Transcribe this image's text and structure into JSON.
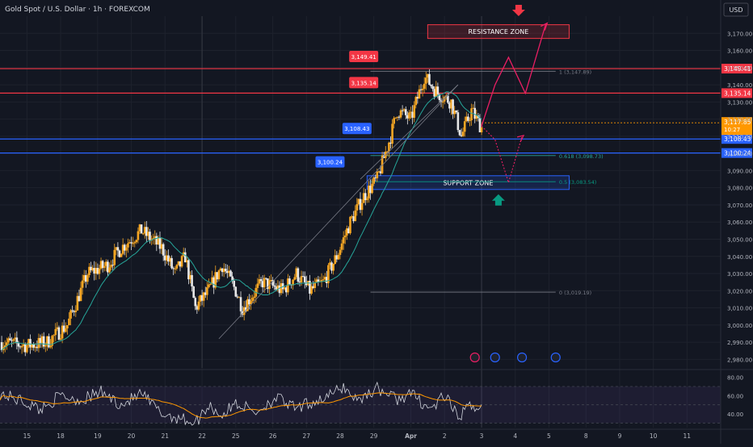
{
  "header": {
    "title": "Gold Spot / U.S. Dollar · 1h · FOREXCOM",
    "currency": "USD"
  },
  "colors": {
    "bg": "#131722",
    "grid": "#1e222d",
    "text": "#b2b5be",
    "up": "#f5a623",
    "down": "#e8e8e8",
    "ma": "#26a69a",
    "red": "#f23645",
    "blue": "#2962ff",
    "pink": "#e91e63",
    "green": "#089981",
    "orange": "#ff9800"
  },
  "chart_data": {
    "type": "candlestick",
    "ylim": [
      2975,
      3180
    ],
    "x_range": [
      0,
      214
    ],
    "y_ticks": [
      3170,
      3160,
      3150,
      3140,
      3130,
      3120,
      3110,
      3100,
      3090,
      3080,
      3070,
      3060,
      3050,
      3040,
      3030,
      3020,
      3010,
      3000,
      2990,
      2980
    ],
    "y_tick_labels": [
      "3,170.00",
      "3,160.00",
      "3,150.00",
      "3,140.00",
      "3,130.00",
      "3,120.00",
      "3,110.00",
      "3,100.00",
      "3,090.00",
      "3,080.00",
      "3,070.00",
      "3,060.00",
      "3,050.00",
      "3,040.00",
      "3,030.00",
      "3,020.00",
      "3,010.00",
      "3,000.00",
      "2,990.00",
      "2,980.00"
    ],
    "x_ticks": [
      {
        "x": 8,
        "label": "15"
      },
      {
        "x": 18,
        "label": "18"
      },
      {
        "x": 29,
        "label": "19"
      },
      {
        "x": 39,
        "label": "20"
      },
      {
        "x": 49,
        "label": "21"
      },
      {
        "x": 60,
        "label": "22"
      },
      {
        "x": 70,
        "label": "25"
      },
      {
        "x": 81,
        "label": "26"
      },
      {
        "x": 91,
        "label": "27"
      },
      {
        "x": 101,
        "label": "28"
      },
      {
        "x": 111,
        "label": "29"
      },
      {
        "x": 122,
        "label": "Apr"
      },
      {
        "x": 132,
        "label": "2"
      },
      {
        "x": 143,
        "label": "3"
      },
      {
        "x": 153,
        "label": "4"
      },
      {
        "x": 163,
        "label": "5"
      },
      {
        "x": 174,
        "label": "8"
      },
      {
        "x": 184,
        "label": "9"
      },
      {
        "x": 194,
        "label": "10"
      },
      {
        "x": 204,
        "label": "11"
      }
    ],
    "key_points": [
      [
        0,
        2990
      ],
      [
        8,
        2988
      ],
      [
        14,
        2990
      ],
      [
        20,
        3000
      ],
      [
        26,
        3030
      ],
      [
        32,
        3035
      ],
      [
        36,
        3045
      ],
      [
        42,
        3055
      ],
      [
        48,
        3045
      ],
      [
        52,
        3030
      ],
      [
        55,
        3040
      ],
      [
        58,
        3010
      ],
      [
        62,
        3020
      ],
      [
        66,
        3035
      ],
      [
        70,
        3020
      ],
      [
        72,
        3010
      ],
      [
        78,
        3025
      ],
      [
        84,
        3020
      ],
      [
        88,
        3030
      ],
      [
        92,
        3020
      ],
      [
        96,
        3025
      ],
      [
        100,
        3040
      ],
      [
        104,
        3060
      ],
      [
        108,
        3075
      ],
      [
        112,
        3085
      ],
      [
        116,
        3110
      ],
      [
        118,
        3125
      ],
      [
        122,
        3120
      ],
      [
        126,
        3145
      ],
      [
        130,
        3135
      ],
      [
        134,
        3130
      ],
      [
        137,
        3110
      ],
      [
        140,
        3125
      ],
      [
        143,
        3115
      ]
    ],
    "price_levels": [
      {
        "label": "3,149.41",
        "price": 3149.41,
        "color": "red"
      },
      {
        "label": "3,135.14",
        "price": 3135.14,
        "color": "red"
      },
      {
        "label": "3,108.43",
        "price": 3108.43,
        "color": "blue"
      },
      {
        "label": "3,100.24",
        "price": 3100.24,
        "color": "blue"
      }
    ],
    "callouts": [
      {
        "label": "3,149.41",
        "x": 108,
        "color": "red"
      },
      {
        "label": "3,135.14",
        "x": 108,
        "color": "red"
      },
      {
        "label": "3,108.43",
        "x": 106,
        "color": "blue"
      },
      {
        "label": "3,100.24",
        "x": 98,
        "color": "blue"
      }
    ],
    "current_price": {
      "label": "3,117.85",
      "countdown": "10:27",
      "price": 3117.85
    },
    "fib_levels": [
      {
        "label": "1 (3,147.89)",
        "price": 3147.89
      },
      {
        "label": "0.618 (3,098.73)",
        "price": 3098.73
      },
      {
        "label": "0.5 (3,083.54)",
        "price": 3083.54
      },
      {
        "label": "0 (3,019.19)",
        "price": 3019.19
      }
    ],
    "resistance_zone": {
      "label": "RESISTANCE ZONE",
      "y_top": 3175,
      "y_bottom": 3167,
      "x0": 127,
      "x1": 169
    },
    "support_zone": {
      "label": "SUPPORT ZONE",
      "y_top": 3087,
      "y_bottom": 3079,
      "x0": 109,
      "x1": 169
    },
    "projection_up": [
      [
        143,
        3116
      ],
      [
        147,
        3140
      ],
      [
        151,
        3156
      ],
      [
        156,
        3135
      ],
      [
        162,
        3175
      ]
    ],
    "projection_alt": [
      [
        143,
        3116
      ],
      [
        147,
        3108
      ],
      [
        151,
        3083
      ],
      [
        155,
        3110
      ]
    ],
    "rsi": {
      "ylim": [
        25,
        85
      ],
      "ticks": [
        80,
        60,
        40
      ],
      "tick_labels": [
        "80.00",
        "60.00",
        "40.00"
      ],
      "band": [
        70,
        30
      ],
      "mid": 50,
      "key_points": [
        [
          0,
          62
        ],
        [
          6,
          55
        ],
        [
          12,
          45
        ],
        [
          18,
          60
        ],
        [
          24,
          55
        ],
        [
          30,
          64
        ],
        [
          36,
          50
        ],
        [
          42,
          62
        ],
        [
          48,
          40
        ],
        [
          54,
          35
        ],
        [
          58,
          30
        ],
        [
          62,
          50
        ],
        [
          66,
          38
        ],
        [
          70,
          52
        ],
        [
          76,
          42
        ],
        [
          82,
          58
        ],
        [
          88,
          45
        ],
        [
          92,
          52
        ],
        [
          98,
          60
        ],
        [
          102,
          70
        ],
        [
          106,
          55
        ],
        [
          112,
          68
        ],
        [
          118,
          56
        ],
        [
          122,
          62
        ],
        [
          128,
          45
        ],
        [
          132,
          60
        ],
        [
          136,
          36
        ],
        [
          140,
          50
        ],
        [
          143,
          47
        ]
      ]
    }
  }
}
